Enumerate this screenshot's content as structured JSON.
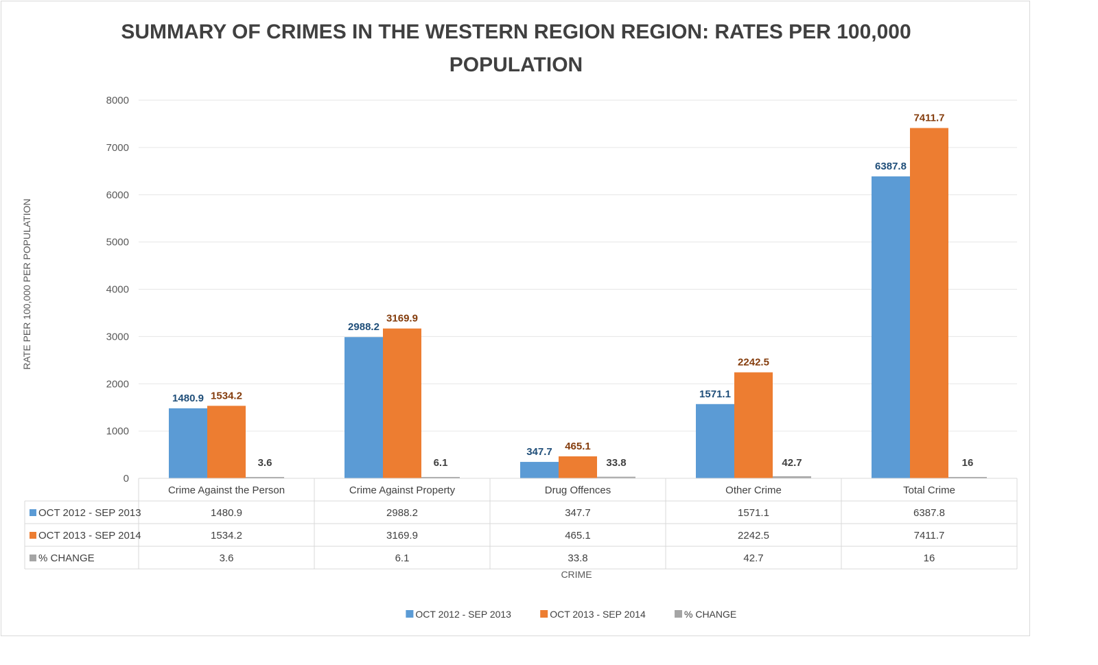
{
  "chart_data": {
    "type": "bar",
    "title_line1": "SUMMARY OF CRIMES IN THE WESTERN REGION REGION: RATES PER 100,000",
    "title_line2": "POPULATION",
    "xlabel": "CRIME",
    "ylabel": "RATE PER 100,000 PER POPULATION",
    "ylim": [
      0,
      8000
    ],
    "yticks": [
      "0",
      "1000",
      "2000",
      "3000",
      "4000",
      "5000",
      "6000",
      "7000",
      "8000"
    ],
    "grid": true,
    "legend_position": "bottom",
    "categories": [
      "Crime Against the Person",
      "Crime Against Property",
      "Drug Offences",
      "Other Crime",
      "Total Crime"
    ],
    "series": [
      {
        "name": "OCT 2012 - SEP 2013",
        "color": "#5b9bd5",
        "label_color": "#1f4e79",
        "values": [
          1480.9,
          2988.2,
          347.7,
          1571.1,
          6387.8
        ],
        "labels": [
          "1480.9",
          "2988.2",
          "347.7",
          "1571.1",
          "6387.8"
        ]
      },
      {
        "name": "OCT 2013 - SEP 2014",
        "color": "#ed7d31",
        "label_color": "#843c0c",
        "values": [
          1534.2,
          3169.9,
          465.1,
          2242.5,
          7411.7
        ],
        "labels": [
          "1534.2",
          "3169.9",
          "465.1",
          "2242.5",
          "7411.7"
        ]
      },
      {
        "name": "% CHANGE",
        "color": "#a5a5a5",
        "label_color": "#404040",
        "values": [
          3.6,
          6.1,
          33.8,
          42.7,
          16
        ],
        "labels": [
          "3.6",
          "6.1",
          "33.8",
          "42.7",
          "16"
        ]
      }
    ]
  }
}
